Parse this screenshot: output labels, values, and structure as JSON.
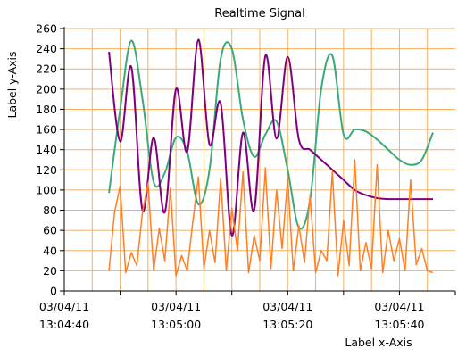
{
  "chart_data": {
    "type": "line",
    "title": "Realtime Signal",
    "xlabel": "Label x-Axis",
    "ylabel": "Label y-Axis",
    "ylim": [
      0,
      260
    ],
    "y_ticks": [
      0,
      20,
      40,
      60,
      80,
      100,
      120,
      140,
      160,
      180,
      200,
      220,
      240,
      260
    ],
    "xlim": [
      "03/04/11 13:04:40",
      "03/04/11 13:05:50"
    ],
    "x_ticks": [
      {
        "date": "03/04/11",
        "time": "13:04:40",
        "t": "13:04:40"
      },
      {
        "date": "03/04/11",
        "time": "13:05:00",
        "t": "13:05:00"
      },
      {
        "date": "03/04/11",
        "time": "13:05:20",
        "t": "13:05:20"
      },
      {
        "date": "03/04/11",
        "time": "13:05:40",
        "t": "13:05:40"
      }
    ],
    "grid": true,
    "colors": {
      "grid": "#f4b060",
      "green": "#3aaa7a",
      "purple": "#800080",
      "orange": "#ff7f27"
    },
    "series": [
      {
        "color": "#3aaa7a",
        "x": [
          "13:04:48",
          "13:04:50",
          "13:04:52",
          "13:04:54",
          "13:04:56",
          "13:04:58",
          "13:05:00",
          "13:05:02",
          "13:05:04",
          "13:05:06",
          "13:05:08",
          "13:05:10",
          "13:05:12",
          "13:05:14",
          "13:05:16",
          "13:05:18",
          "13:05:20",
          "13:05:22",
          "13:05:24",
          "13:05:26",
          "13:05:28",
          "13:05:30",
          "13:05:32",
          "13:05:34",
          "13:05:36",
          "13:05:38",
          "13:05:40",
          "13:05:42",
          "13:05:44",
          "13:05:46"
        ],
        "values": [
          97,
          180,
          248,
          190,
          108,
          117,
          152,
          138,
          86,
          120,
          230,
          240,
          170,
          133,
          155,
          168,
          120,
          63,
          90,
          200,
          233,
          155,
          160,
          158,
          150,
          140,
          130,
          125,
          130,
          157
        ]
      },
      {
        "color": "#800080",
        "x": [
          "13:04:48",
          "13:04:50",
          "13:04:52",
          "13:04:54",
          "13:04:56",
          "13:04:58",
          "13:05:00",
          "13:05:02",
          "13:05:04",
          "13:05:06",
          "13:05:08",
          "13:05:10",
          "13:05:12",
          "13:05:14",
          "13:05:16",
          "13:05:18",
          "13:05:20",
          "13:05:22",
          "13:05:24",
          "13:05:26",
          "13:05:28",
          "13:05:30",
          "13:05:32",
          "13:05:34",
          "13:05:36",
          "13:05:38",
          "13:05:40",
          "13:05:42",
          "13:05:44",
          "13:05:46"
        ],
        "values": [
          237,
          148,
          222,
          80,
          152,
          78,
          200,
          138,
          249,
          145,
          186,
          55,
          157,
          80,
          233,
          151,
          232,
          150,
          140,
          130,
          120,
          110,
          100,
          95,
          92,
          91,
          91,
          91,
          91,
          91
        ]
      },
      {
        "color": "#ff7f27",
        "x": [
          "13:04:48",
          "13:04:49",
          "13:04:50",
          "13:04:51",
          "13:04:52",
          "13:04:53",
          "13:04:54",
          "13:04:55",
          "13:04:56",
          "13:04:57",
          "13:04:58",
          "13:04:59",
          "13:05:00",
          "13:05:01",
          "13:05:02",
          "13:05:03",
          "13:05:04",
          "13:05:05",
          "13:05:06",
          "13:05:07",
          "13:05:08",
          "13:05:09",
          "13:05:10",
          "13:05:11",
          "13:05:12",
          "13:05:13",
          "13:05:14",
          "13:05:15",
          "13:05:16",
          "13:05:17",
          "13:05:18",
          "13:05:19",
          "13:05:20",
          "13:05:21",
          "13:05:22",
          "13:05:23",
          "13:05:24",
          "13:05:25",
          "13:05:26",
          "13:05:27",
          "13:05:28",
          "13:05:29",
          "13:05:30",
          "13:05:31",
          "13:05:32",
          "13:05:33",
          "13:05:34",
          "13:05:35",
          "13:05:36",
          "13:05:37",
          "13:05:38",
          "13:05:39",
          "13:05:40",
          "13:05:41",
          "13:05:42",
          "13:05:43",
          "13:05:44",
          "13:05:45",
          "13:05:46"
        ],
        "values": [
          20,
          78,
          104,
          18,
          38,
          25,
          78,
          107,
          20,
          62,
          30,
          102,
          15,
          35,
          20,
          68,
          113,
          22,
          60,
          28,
          112,
          20,
          82,
          40,
          118,
          18,
          55,
          30,
          122,
          22,
          100,
          42,
          112,
          20,
          65,
          28,
          95,
          18,
          40,
          30,
          118,
          15,
          70,
          25,
          130,
          20,
          48,
          22,
          125,
          18,
          60,
          30,
          52,
          20,
          110,
          26,
          42,
          20,
          18
        ]
      }
    ]
  }
}
